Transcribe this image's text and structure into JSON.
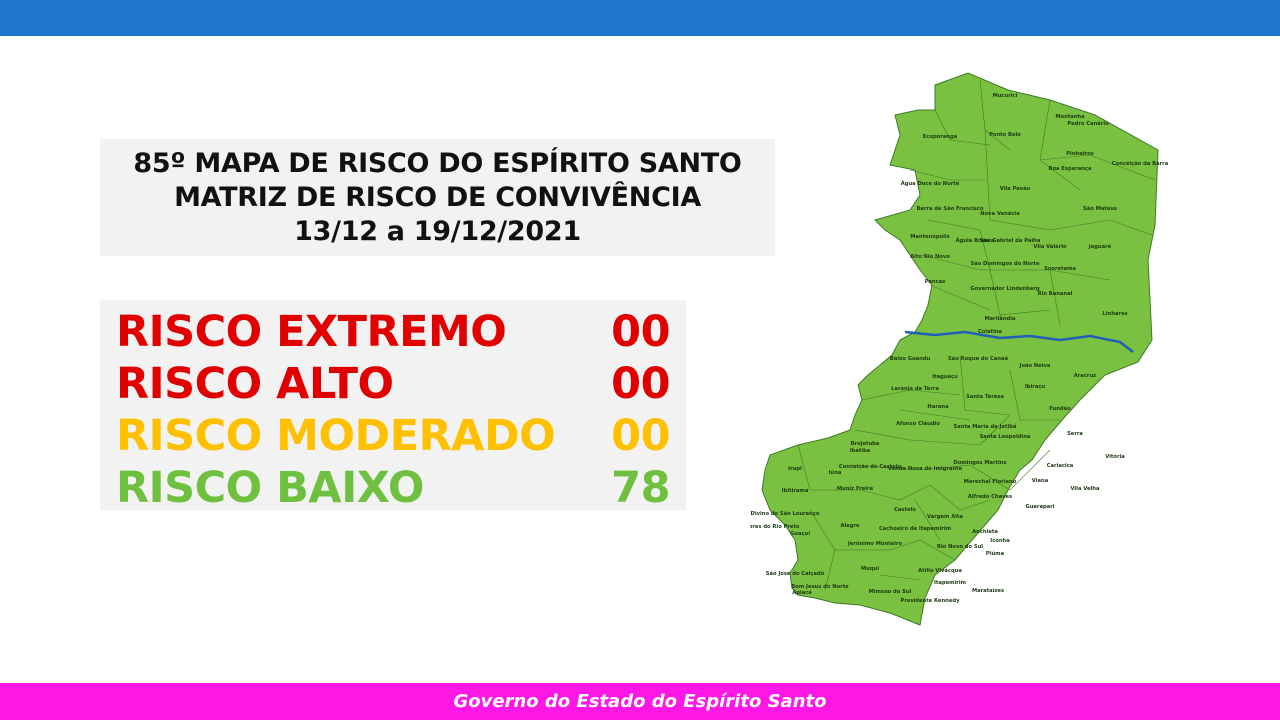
{
  "title": {
    "line1": "85º MAPA DE RISCO DO ESPÍRITO SANTO",
    "line2": "MATRIZ DE RISCO DE CONVIVÊNCIA",
    "line3": "13/12 a 19/12/2021"
  },
  "risk_levels": [
    {
      "label": "RISCO EXTREMO",
      "value": "00",
      "color": "#e00000"
    },
    {
      "label": "RISCO ALTO",
      "value": "00",
      "color": "#e00000"
    },
    {
      "label": "RISCO MODERADO",
      "value": "00",
      "color": "#ffc000"
    },
    {
      "label": "RISCO BAIXO",
      "value": "78",
      "color": "#70c040"
    }
  ],
  "map": {
    "fill_color": "#7ac142",
    "border_color": "#3f7a24",
    "river_color": "#1f5fb5",
    "municipalities": [
      "Mucurici",
      "Montanha",
      "Pedro Canário",
      "Ecoporanga",
      "Ponto Belo",
      "Pinheiros",
      "Conceição da Barra",
      "Boa Esperança",
      "Água Doce do Norte",
      "Barra de São Francisco",
      "Vila Pavão",
      "Nova Venécia",
      "São Mateus",
      "Mantenópolis",
      "Águia Branca",
      "São Gabriel da Palha",
      "Vila Valério",
      "Jaguaré",
      "Alto Rio Novo",
      "São Domingos do Norte",
      "Sooretama",
      "Pancas",
      "Governador Lindenberg",
      "Rio Bananal",
      "Linhares",
      "Marilândia",
      "Colatina",
      "Baixo Guandu",
      "São Roque do Canaã",
      "João Neiva",
      "Aracruz",
      "Itaguaçu",
      "Ibiraçu",
      "Laranja da Terra",
      "Santa Teresa",
      "Itarana",
      "Fundão",
      "Afonso Cláudio",
      "Santa Maria de Jetibá",
      "Serra",
      "Brejetuba",
      "Santa Leopoldina",
      "Vitória",
      "Ibatiba",
      "Conceição do Castelo",
      "Venda Nova do Imigrante",
      "Domingos Martins",
      "Cariacica",
      "Irupi",
      "Iúna",
      "Marechal Floriano",
      "Viana",
      "Vila Velha",
      "Ibitirama",
      "Muniz Freire",
      "Alfredo Chaves",
      "Guarapari",
      "Castelo",
      "Vargem Alta",
      "Divino de São Lourenço",
      "Dores do Rio Preto",
      "Alegre",
      "Cachoeiro de Itapemirim",
      "Anchieta",
      "Guaçuí",
      "Jerônimo Monteiro",
      "Iconha",
      "Rio Novo do Sul",
      "Piúma",
      "Muqui",
      "Atílio Vivácqua",
      "Itapemirim",
      "São José do Calçado",
      "Bom Jesus do Norte",
      "Apiacá",
      "Mimoso do Sul",
      "Presidente Kennedy",
      "Marataízes"
    ]
  },
  "footer": {
    "text": "Governo do Estado do Espírito Santo"
  }
}
